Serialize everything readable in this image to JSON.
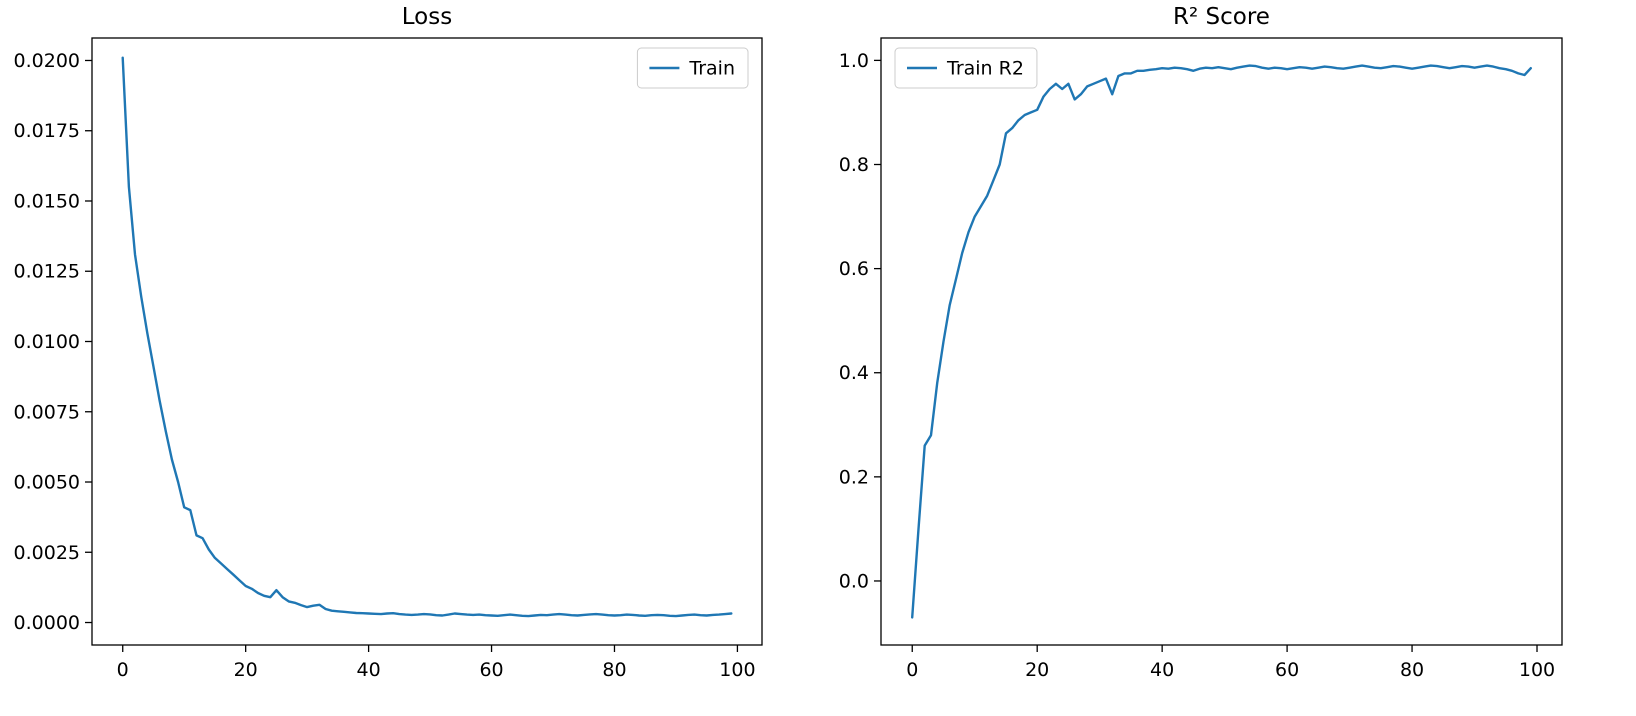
{
  "colors": {
    "line": "#1f77b4",
    "background": "#ffffff",
    "frame": "#000000",
    "legend_border": "#cccccc"
  },
  "chart_data": [
    {
      "type": "line",
      "title": "Loss",
      "xlabel": "",
      "ylabel": "",
      "grid": false,
      "legend": {
        "label": "Train",
        "position": "upper right"
      },
      "xlim": [
        -5,
        104
      ],
      "ylim": [
        -0.0008,
        0.0208
      ],
      "xticks": {
        "values": [
          0,
          20,
          40,
          60,
          80,
          100
        ],
        "labels": [
          "0",
          "20",
          "40",
          "60",
          "80",
          "100"
        ]
      },
      "yticks": {
        "values": [
          0.0,
          0.0025,
          0.005,
          0.0075,
          0.01,
          0.0125,
          0.015,
          0.0175,
          0.02
        ],
        "labels": [
          "0.0000",
          "0.0025",
          "0.0050",
          "0.0075",
          "0.0100",
          "0.0125",
          "0.0150",
          "0.0175",
          "0.0200"
        ]
      },
      "x": [
        0,
        1,
        2,
        3,
        4,
        5,
        6,
        7,
        8,
        9,
        10,
        11,
        12,
        13,
        14,
        15,
        16,
        17,
        18,
        19,
        20,
        21,
        22,
        23,
        24,
        25,
        26,
        27,
        28,
        29,
        30,
        31,
        32,
        33,
        34,
        35,
        36,
        37,
        38,
        39,
        40,
        41,
        42,
        43,
        44,
        45,
        46,
        47,
        48,
        49,
        50,
        51,
        52,
        53,
        54,
        55,
        56,
        57,
        58,
        59,
        60,
        61,
        62,
        63,
        64,
        65,
        66,
        67,
        68,
        69,
        70,
        71,
        72,
        73,
        74,
        75,
        76,
        77,
        78,
        79,
        80,
        81,
        82,
        83,
        84,
        85,
        86,
        87,
        88,
        89,
        90,
        91,
        92,
        93,
        94,
        95,
        96,
        97,
        98,
        99
      ],
      "series": [
        {
          "name": "Train",
          "values": [
            0.0201,
            0.0155,
            0.0131,
            0.0116,
            0.0103,
            0.0091,
            0.0079,
            0.0068,
            0.0058,
            0.005,
            0.0041,
            0.004,
            0.0031,
            0.003,
            0.0026,
            0.0023,
            0.0021,
            0.0019,
            0.0017,
            0.0015,
            0.0013,
            0.0012,
            0.00105,
            0.00095,
            0.0009,
            0.00115,
            0.0009,
            0.00075,
            0.0007,
            0.00062,
            0.00055,
            0.0006,
            0.00063,
            0.00048,
            0.00042,
            0.0004,
            0.00038,
            0.00036,
            0.00034,
            0.00033,
            0.00032,
            0.00031,
            0.0003,
            0.00032,
            0.00033,
            0.0003,
            0.00028,
            0.00027,
            0.00028,
            0.0003,
            0.00029,
            0.00026,
            0.00025,
            0.00028,
            0.00032,
            0.0003,
            0.00028,
            0.00027,
            0.00028,
            0.00026,
            0.00025,
            0.00024,
            0.00026,
            0.00028,
            0.00026,
            0.00024,
            0.00023,
            0.00025,
            0.00027,
            0.00026,
            0.00028,
            0.0003,
            0.00028,
            0.00026,
            0.00025,
            0.00027,
            0.00029,
            0.0003,
            0.00028,
            0.00026,
            0.00025,
            0.00026,
            0.00028,
            0.00027,
            0.00025,
            0.00024,
            0.00026,
            0.00027,
            0.00026,
            0.00024,
            0.00023,
            0.00025,
            0.00027,
            0.00028,
            0.00026,
            0.00025,
            0.00027,
            0.00028,
            0.0003,
            0.00032
          ]
        }
      ]
    },
    {
      "type": "line",
      "title": "R² Score",
      "xlabel": "",
      "ylabel": "",
      "grid": false,
      "legend": {
        "label": "Train R2",
        "position": "upper left"
      },
      "xlim": [
        -5,
        104
      ],
      "ylim": [
        -0.123,
        1.043
      ],
      "xticks": {
        "values": [
          0,
          20,
          40,
          60,
          80,
          100
        ],
        "labels": [
          "0",
          "20",
          "40",
          "60",
          "80",
          "100"
        ]
      },
      "yticks": {
        "values": [
          0.0,
          0.2,
          0.4,
          0.6,
          0.8,
          1.0
        ],
        "labels": [
          "0.0",
          "0.2",
          "0.4",
          "0.6",
          "0.8",
          "1.0"
        ]
      },
      "x": [
        0,
        1,
        2,
        3,
        4,
        5,
        6,
        7,
        8,
        9,
        10,
        11,
        12,
        13,
        14,
        15,
        16,
        17,
        18,
        19,
        20,
        21,
        22,
        23,
        24,
        25,
        26,
        27,
        28,
        29,
        30,
        31,
        32,
        33,
        34,
        35,
        36,
        37,
        38,
        39,
        40,
        41,
        42,
        43,
        44,
        45,
        46,
        47,
        48,
        49,
        50,
        51,
        52,
        53,
        54,
        55,
        56,
        57,
        58,
        59,
        60,
        61,
        62,
        63,
        64,
        65,
        66,
        67,
        68,
        69,
        70,
        71,
        72,
        73,
        74,
        75,
        76,
        77,
        78,
        79,
        80,
        81,
        82,
        83,
        84,
        85,
        86,
        87,
        88,
        89,
        90,
        91,
        92,
        93,
        94,
        95,
        96,
        97,
        98,
        99
      ],
      "series": [
        {
          "name": "Train R2",
          "values": [
            -0.07,
            0.1,
            0.26,
            0.28,
            0.38,
            0.46,
            0.53,
            0.58,
            0.63,
            0.67,
            0.7,
            0.72,
            0.74,
            0.77,
            0.8,
            0.86,
            0.87,
            0.885,
            0.895,
            0.9,
            0.905,
            0.93,
            0.945,
            0.955,
            0.945,
            0.955,
            0.925,
            0.935,
            0.95,
            0.955,
            0.96,
            0.965,
            0.935,
            0.97,
            0.975,
            0.975,
            0.98,
            0.98,
            0.982,
            0.983,
            0.985,
            0.984,
            0.986,
            0.985,
            0.983,
            0.98,
            0.984,
            0.986,
            0.985,
            0.987,
            0.985,
            0.983,
            0.986,
            0.988,
            0.99,
            0.989,
            0.986,
            0.984,
            0.986,
            0.985,
            0.983,
            0.985,
            0.987,
            0.986,
            0.984,
            0.986,
            0.988,
            0.987,
            0.985,
            0.984,
            0.986,
            0.988,
            0.99,
            0.988,
            0.986,
            0.985,
            0.987,
            0.989,
            0.988,
            0.986,
            0.984,
            0.986,
            0.988,
            0.99,
            0.989,
            0.987,
            0.985,
            0.987,
            0.989,
            0.988,
            0.986,
            0.988,
            0.99,
            0.988,
            0.985,
            0.983,
            0.98,
            0.975,
            0.972,
            0.985
          ]
        }
      ]
    }
  ]
}
